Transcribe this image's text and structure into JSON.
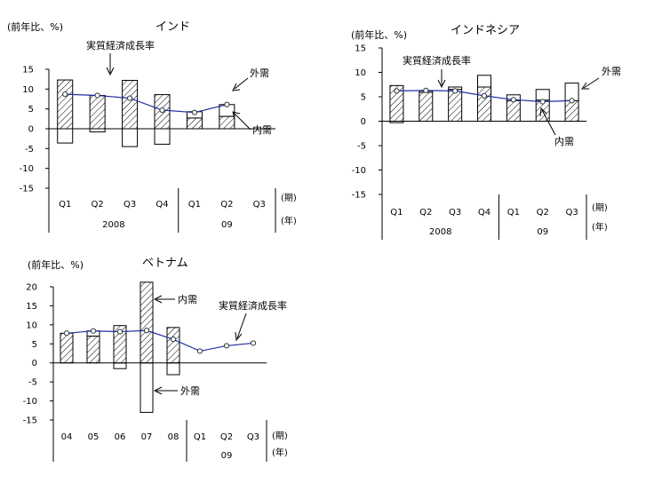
{
  "chart_data": [
    {
      "type": "bar",
      "title": "インド",
      "y_unit": "(前年比、%)",
      "ylim": [
        -15,
        15
      ],
      "yticks": [
        15,
        10,
        5,
        0,
        -5,
        -10,
        -15
      ],
      "categories": [
        "Q1",
        "Q2",
        "Q3",
        "Q4",
        "Q1",
        "Q2",
        "Q3"
      ],
      "period_label": "(期)",
      "year_label": "(年)",
      "year_groups": [
        {
          "label": "2008",
          "span": [
            0,
            3
          ]
        },
        {
          "label": "09",
          "span": [
            4,
            6
          ]
        }
      ],
      "series": [
        {
          "name": "内需",
          "kind": "bar",
          "pattern": "hatched",
          "values": [
            12.3,
            8.4,
            12.2,
            8.6,
            2.7,
            3.1,
            null
          ]
        },
        {
          "name": "外需",
          "kind": "bar",
          "pattern": "hollow",
          "values": [
            -3.6,
            -0.8,
            -4.5,
            -3.9,
            1.6,
            3.0,
            null
          ]
        },
        {
          "name": "実質経済成長率",
          "kind": "line",
          "color": "#1f2fa0",
          "values": [
            8.7,
            8.4,
            7.7,
            4.7,
            4.1,
            6.1,
            null
          ]
        }
      ],
      "annotations": [
        "実質経済成長率",
        "外需",
        "内需"
      ]
    },
    {
      "type": "bar",
      "title": "インドネシア",
      "y_unit": "(前年比、%)",
      "ylim": [
        -15,
        15
      ],
      "yticks": [
        15,
        10,
        5,
        0,
        -5,
        -10,
        -15
      ],
      "categories": [
        "Q1",
        "Q2",
        "Q3",
        "Q4",
        "Q1",
        "Q2",
        "Q3"
      ],
      "period_label": "(期)",
      "year_label": "(年)",
      "year_groups": [
        {
          "label": "2008",
          "span": [
            0,
            3
          ]
        },
        {
          "label": "09",
          "span": [
            4,
            6
          ]
        }
      ],
      "series": [
        {
          "name": "内需",
          "kind": "bar",
          "pattern": "hatched",
          "values": [
            7.3,
            5.9,
            6.5,
            7.0,
            4.2,
            4.3,
            4.2
          ]
        },
        {
          "name": "外需",
          "kind": "bar",
          "pattern": "hollow",
          "values": [
            -0.3,
            0.3,
            0.5,
            2.4,
            1.2,
            2.2,
            3.6
          ]
        },
        {
          "name": "実質経済成長率",
          "kind": "line",
          "color": "#1f2fa0",
          "values": [
            6.2,
            6.3,
            6.2,
            5.2,
            4.4,
            4.0,
            4.2
          ]
        }
      ],
      "annotations": [
        "実質経済成長率",
        "外需",
        "内需"
      ]
    },
    {
      "type": "bar",
      "title": "ベトナム",
      "y_unit": "(前年比、%)",
      "ylim": [
        -15,
        20
      ],
      "yticks": [
        20,
        15,
        10,
        5,
        0,
        -5,
        -10,
        -15
      ],
      "categories": [
        "04",
        "05",
        "06",
        "07",
        "08",
        "Q1",
        "Q2",
        "Q3"
      ],
      "period_label": "(期)",
      "year_label": "(年)",
      "year_groups": [
        {
          "label": "09",
          "span": [
            5,
            7
          ]
        }
      ],
      "series": [
        {
          "name": "内需",
          "kind": "bar",
          "pattern": "hatched",
          "values": [
            7.8,
            7.0,
            9.8,
            21.2,
            9.3,
            null,
            null,
            null
          ]
        },
        {
          "name": "外需",
          "kind": "bar",
          "pattern": "hollow",
          "values": [
            0.0,
            1.4,
            -1.5,
            -13.0,
            -3.1,
            null,
            null,
            null
          ]
        },
        {
          "name": "実質経済成長率",
          "kind": "line",
          "color": "#1f2fa0",
          "values": [
            7.8,
            8.4,
            8.2,
            8.5,
            6.2,
            3.1,
            4.5,
            5.2
          ]
        }
      ],
      "annotations": [
        "内需",
        "実質経済成長率",
        "外需"
      ]
    }
  ]
}
